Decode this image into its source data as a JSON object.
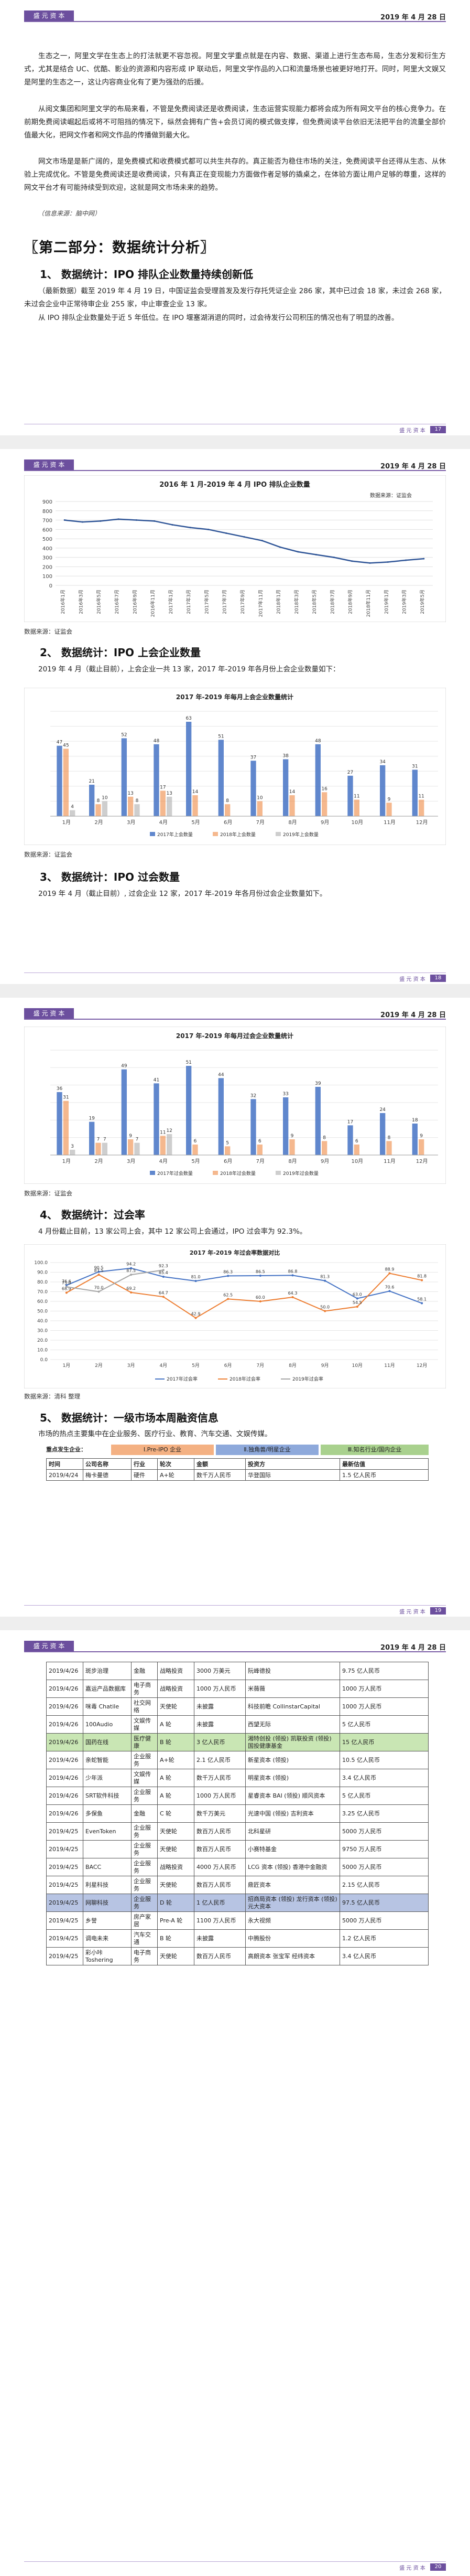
{
  "header": {
    "logo_text": "盛 元 资 本",
    "date": "2019 年 4 月 28 日"
  },
  "page1": {
    "paragraphs": [
      "生态之一，阿里文学在生态上的打法就更不容忽视。阿里文学重点就是在内容、数据、渠道上进行生态布局，生态分发和衍生方式，尤其是结合 UC、优酷、影业的资源和内容形成 IP 联动后，阿里文学作品的入口和流量场景也被更好地打开。同时，阿里大文娱又是阿里的生态之一，这让内容商业化有了更为强劲的后援。",
      "从阅文集团和阿里文学的布局来看，不管是免费阅读还是收费阅读，生态运营实现能力都将会成为所有网文平台的核心竞争力。在前期免费阅读崛起后或将不可阻挡的情况下，纵然会拥有广告+会员订阅的模式做支撑，但免费阅读平台依旧无法把平台的流量全部价值最大化，把网文作者和网文作品的传播做到最大化。",
      "网文市场是是新广阔的，是免费模式和收费模式都可以共生共存的。真正能否为稳住市场的关注，免费阅读平台还得从生态、从休验上完成优化。不管是免费阅读还是收费阅读，只有真正在变现能力方面做作者足够的撬桌之，在体验方面让用户足够的尊重，这样的网文平台才有可能持续受到欢迎，这就是网文市场未来的趋势。"
    ],
    "note": "（信息来源：脑中网）",
    "part_title": "〖第二部分：数据统计分析〗",
    "sec1_title": "1、 数据统计：IPO 排队企业数量持续创新低",
    "sec1_para": "（最新数据）截至 2019 年 4 月 19 日，中国证监会受理首发及发行存托凭证企业 286 家，其中已过会 18 家，未过会 268 家，未过会企业中正常待审企业 255 家，中止审查企业 13 家。",
    "sec1_para2": "从 IPO 排队企业数量处于近 5 年低位。在 IPO 堰塞湖消退的同时，过会待发行公司积压的情况也有了明显的改善。",
    "footer_page": "17"
  },
  "page2": {
    "src1": "数据来源：证监会",
    "sec2_title": "2、 数据统计：IPO 上会企业数量",
    "sec2_para": "2019 年 4 月（截止目前），上会企业一共 13 家，2017 年-2019 年各月份上会企业数量如下：",
    "src2": "数据来源：证监会",
    "sec3_title": "3、 数据统计：IPO 过会数量",
    "sec3_para": "2019 年 4 月（截止目前）, 过会企业 12 家，2017 年-2019 年各月份过会企业数量如下。",
    "footer_page": "18"
  },
  "page3": {
    "src1": "数据来源：证监会",
    "sec4_title": "4、 数据统计：过会率",
    "sec4_para": "4 月份截止目前，13 家公司上会，其中 12 家公司上会通过，IPO 过会率为 92.3%。",
    "src2": "数据来源：清科 整理",
    "sec5_title": "5、 数据统计：一级市场本周融资信息",
    "sec5_para": "市场的热点主要集中在企业服务、医疗行业、教育、汽车交通、文娱传媒。",
    "legend_label": "重点发生企业：",
    "legend_items": [
      "Ⅰ.Pre-IPO 企业",
      "Ⅱ.独角兽/明星企业",
      "Ⅲ.知名行业/国内企业"
    ],
    "legend_colors": [
      "#f4b183",
      "#8ea9db",
      "#a9d18e"
    ],
    "table_head": [
      "时间",
      "公司名称",
      "行业",
      "轮次",
      "金额",
      "投资方",
      "最新估值"
    ],
    "first_row": [
      "2019/4/24",
      "梅卡曼德",
      "硬件",
      "A+轮",
      "数千万人民币",
      "华登国际",
      "1.5 亿人民币"
    ],
    "footer_page": "19"
  },
  "chart1": {
    "chart_data": {
      "type": "line",
      "title": "2016 年 1 月-2019 年 4 月 IPO 排队企业数量",
      "legend": "数据来源：证监会",
      "ylim": [
        0,
        900
      ],
      "yticks": [
        0,
        100,
        200,
        300,
        400,
        500,
        600,
        700,
        800,
        900
      ],
      "categories": [
        "2016年1月",
        "2016年3月",
        "2016年5月",
        "2016年7月",
        "2016年9月",
        "2016年11月",
        "2017年1月",
        "2017年3月",
        "2017年5月",
        "2017年7月",
        "2017年9月",
        "2017年11月",
        "2018年1月",
        "2018年3月",
        "2018年5月",
        "2018年7月",
        "2018年9月",
        "2018年11月",
        "2019年1月",
        "2019年3月",
        "2019年5月"
      ],
      "values": [
        700,
        680,
        690,
        710,
        700,
        690,
        650,
        620,
        600,
        560,
        520,
        480,
        410,
        360,
        330,
        300,
        260,
        240,
        250,
        270,
        286
      ]
    }
  },
  "chart2": {
    "chart_data": {
      "type": "bar",
      "title": "2017 年-2019 年每月上会企业数量统计",
      "categories": [
        "1月",
        "2月",
        "3月",
        "4月",
        "5月",
        "6月",
        "7月",
        "8月",
        "9月",
        "10月",
        "11月",
        "12月"
      ],
      "ylim": [
        0,
        70
      ],
      "series": [
        {
          "name": "2017年上会数量",
          "color": "#4472c4",
          "values": [
            47,
            21,
            52,
            48,
            63,
            51,
            37,
            38,
            48,
            27,
            34,
            31
          ]
        },
        {
          "name": "2018年上会数量",
          "color": "#ed7d31",
          "values": [
            45,
            8,
            13,
            17,
            14,
            8,
            10,
            14,
            16,
            11,
            9,
            11
          ]
        },
        {
          "name": "2019年上会数量",
          "color": "#a5a5a5",
          "values": [
            4,
            10,
            8,
            13,
            0,
            0,
            0,
            0,
            0,
            0,
            0,
            0
          ]
        }
      ],
      "labels": [
        [
          "47",
          "21",
          "52",
          "48",
          "63",
          "51",
          "37",
          "38",
          "48",
          "27",
          "34",
          "31"
        ],
        [
          "45",
          "8",
          "13",
          "17",
          "14",
          "8",
          "10",
          "14",
          "16",
          "11",
          "9",
          "11"
        ],
        [
          "4",
          "10",
          "8",
          "13",
          "",
          "",
          "",
          "",
          "",
          "",
          "",
          ""
        ]
      ]
    }
  },
  "chart3": {
    "chart_data": {
      "type": "bar",
      "title": "2017 年-2019 年每月过会企业数量统计",
      "categories": [
        "1月",
        "2月",
        "3月",
        "4月",
        "5月",
        "6月",
        "7月",
        "8月",
        "9月",
        "10月",
        "11月",
        "12月"
      ],
      "ylim": [
        0,
        60
      ],
      "series": [
        {
          "name": "2017年过会数量",
          "color": "#4472c4",
          "values": [
            36,
            19,
            49,
            41,
            51,
            44,
            32,
            33,
            39,
            17,
            24,
            18
          ]
        },
        {
          "name": "2018年过会数量",
          "color": "#ed7d31",
          "values": [
            31,
            7,
            9,
            11,
            6,
            5,
            6,
            9,
            8,
            6,
            8,
            9
          ]
        },
        {
          "name": "2019年过会数量",
          "color": "#a5a5a5",
          "values": [
            3,
            7,
            7,
            12,
            0,
            0,
            0,
            0,
            0,
            0,
            0,
            0
          ]
        }
      ]
    }
  },
  "chart4": {
    "chart_data": {
      "type": "line",
      "title": "2017 年-2019 年过会率数据对比",
      "categories": [
        "1月",
        "2月",
        "3月",
        "4月",
        "5月",
        "6月",
        "7月",
        "8月",
        "9月",
        "10月",
        "11月",
        "12月"
      ],
      "ylim": [
        0,
        100
      ],
      "yticks": [
        0,
        10,
        20,
        30,
        40,
        50,
        60,
        70,
        80,
        90,
        100
      ],
      "series": [
        {
          "name": "2017年过会率",
          "color": "#4472c4",
          "values": [
            76.6,
            90.5,
            94.2,
            85.4,
            81.0,
            86.3,
            86.5,
            86.8,
            81.3,
            63.0,
            70.6,
            58.1
          ]
        },
        {
          "name": "2018年过会率",
          "color": "#ed7d31",
          "values": [
            68.9,
            87.5,
            69.2,
            64.7,
            42.9,
            62.5,
            60.0,
            64.3,
            50.0,
            54.5,
            88.9,
            81.8
          ]
        },
        {
          "name": "2019年过会率",
          "color": "#a5a5a5",
          "values": [
            75.0,
            70.0,
            87.5,
            92.3,
            null,
            null,
            null,
            null,
            null,
            null,
            null,
            null
          ]
        }
      ]
    }
  },
  "table": {
    "rows": [
      {
        "c": [
          "2019/4/26",
          "斑步治理",
          "金融",
          "战略投资",
          "3000 万美元",
          "阮峰德投",
          "9.75 亿人民币"
        ],
        "hl": ""
      },
      {
        "c": [
          "2019/4/26",
          "嘉运产品数据库",
          "电子商务",
          "战略投资",
          "1000 万人民币",
          "米薇薇",
          "1000 万人民币"
        ],
        "hl": ""
      },
      {
        "c": [
          "2019/4/26",
          "咪毒 Chatile",
          "社交网络",
          "天使轮",
          "未披露",
          "科技前瞻 CollinstarCapital",
          "1000 万人民币"
        ],
        "hl": ""
      },
      {
        "c": [
          "2019/4/26",
          "100Audio",
          "文娱传媒",
          "A 轮",
          "未披露",
          "西望无际",
          "5 亿人民币"
        ],
        "hl": ""
      },
      {
        "c": [
          "2019/4/26",
          "国药在线",
          "医疗健康",
          "B 轮",
          "3 亿人民币",
          "湘特创投 (领投) 凯联投资 (领投) 国投健康基金",
          "15 亿人民币"
        ],
        "hl": "g"
      },
      {
        "c": [
          "2019/4/26",
          "亲蛇智能",
          "企业服务",
          "A+轮",
          "2.1 亿人民币",
          "新星资本 (领投)",
          "10.5 亿人民币"
        ],
        "hl": ""
      },
      {
        "c": [
          "2019/4/26",
          "少年派",
          "文娱传媒",
          "A 轮",
          "数千万人民币",
          "明星资本 (领投)",
          "3.4 亿人民币"
        ],
        "hl": ""
      },
      {
        "c": [
          "2019/4/26",
          "SRT软件科技",
          "企业服务",
          "A 轮",
          "1000 万人民币",
          "星睿资本 BAI (领投) 顺风资本",
          "5 亿人民币"
        ],
        "hl": ""
      },
      {
        "c": [
          "2019/4/26",
          "多保鱼",
          "金融",
          "C 轮",
          "数千万美元",
          "光速中国 (领投) 吉利资本",
          "3.25 亿人民币"
        ],
        "hl": ""
      },
      {
        "c": [
          "2019/4/25",
          "EvenToken",
          "企业服务",
          "天使轮",
          "数百万人民币",
          "北科星研",
          "5000 万人民币"
        ],
        "hl": ""
      },
      {
        "c": [
          "2019/4/25",
          "",
          "企业服务",
          "天使轮",
          "数百万人民币",
          "小赛特基金",
          "9750 万人民币"
        ],
        "hl": ""
      },
      {
        "c": [
          "2019/4/25",
          "BACC",
          "企业服务",
          "战略投资",
          "4000 万人民币",
          "LCG 资本 (领投) 香港中金融资",
          "5000 万人民币"
        ],
        "hl": ""
      },
      {
        "c": [
          "2019/4/25",
          "利星科技",
          "企业服务",
          "天使轮",
          "数百万人民币",
          "鼎匠资本",
          "2.15 亿人民币"
        ],
        "hl": ""
      },
      {
        "c": [
          "2019/4/25",
          "网聊科技",
          "企业服务",
          "D 轮",
          "1 亿人民币",
          "招商局资本 (领投) 龙行资本 (领投) 元大资本",
          "97.5 亿人民币"
        ],
        "hl": "b"
      },
      {
        "c": [
          "2019/4/25",
          "乡誉",
          "房产家居",
          "Pre-A 轮",
          "1100 万人民币",
          "永大视频",
          "5000 万人民币"
        ],
        "hl": ""
      },
      {
        "c": [
          "2019/4/25",
          "调电未来",
          "汽车交通",
          "B 轮",
          "未披露",
          "中腾股份",
          "1.2 亿人民币"
        ],
        "hl": ""
      },
      {
        "c": [
          "2019/4/25",
          "彩小咔 Toshering",
          "电子商务",
          "天使轮",
          "数百万人民币",
          "高朗资本 张宝军 经纬资本",
          "3.4 亿人民币"
        ],
        "hl": ""
      }
    ],
    "footer_page": "20"
  }
}
